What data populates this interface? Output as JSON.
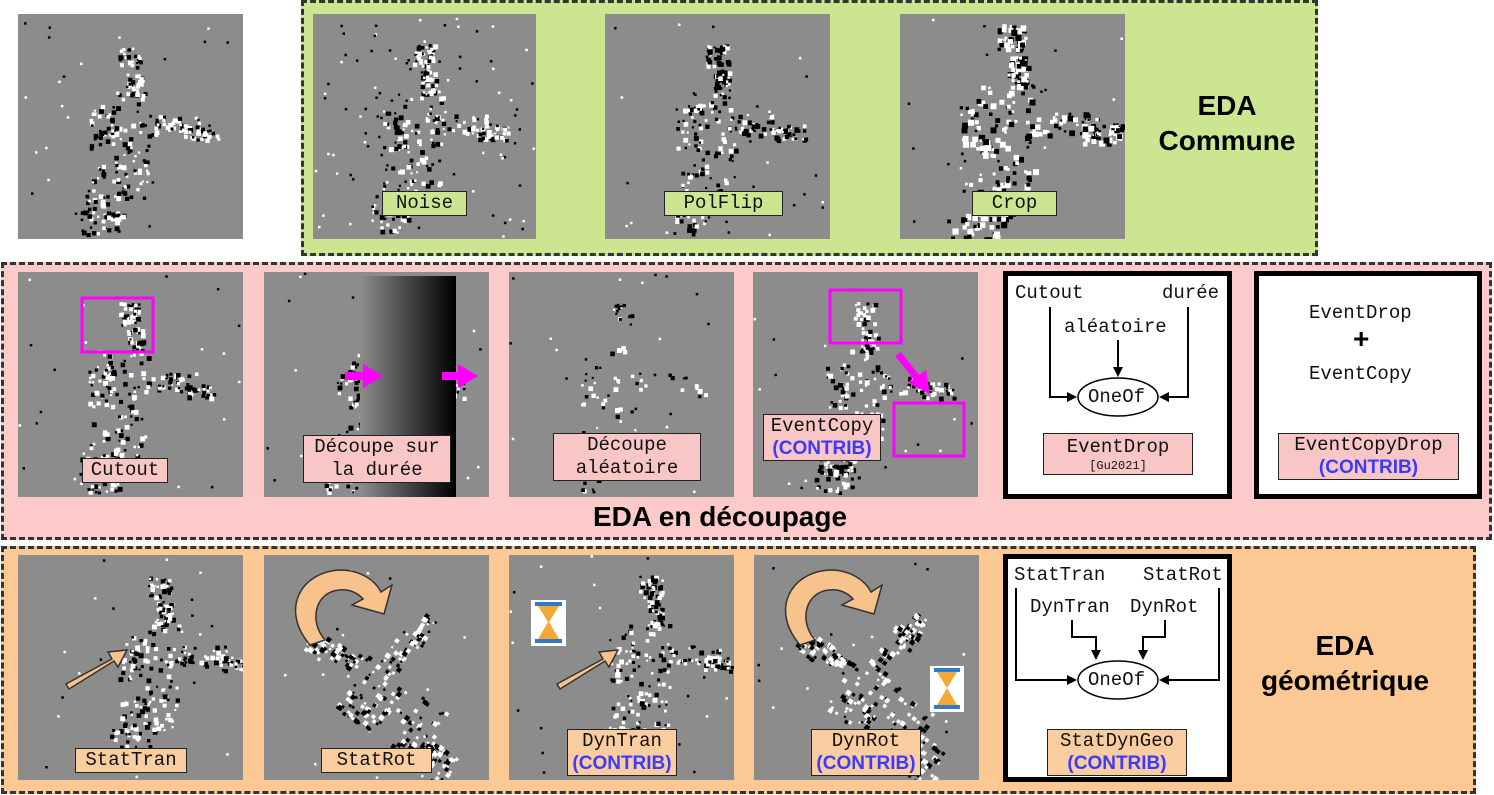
{
  "common": {
    "title_line1": "EDA",
    "title_line2": "Commune",
    "labels": {
      "noise": "Noise",
      "polflip": "PolFlip",
      "crop": "Crop"
    }
  },
  "cutting": {
    "title": "EDA en découpage",
    "labels": {
      "cutout": "Cutout",
      "time_cut_1": "Découpe sur",
      "time_cut_2": "la durée",
      "random_cut_1": "Découpe",
      "random_cut_2": "aléatoire",
      "eventcopy": "EventCopy",
      "contrib": "(CONTRIB)",
      "eventdrop": "EventDrop",
      "eventdrop_ref": "[Gu2021]",
      "eventcopydrop": "EventCopyDrop"
    },
    "eventdrop_box": {
      "in_left": "Cutout",
      "in_right": "durée",
      "in_mid": "aléatoire",
      "node": "OneOf"
    },
    "copydrop_box": {
      "top": "EventDrop",
      "plus": "+",
      "bottom": "EventCopy"
    }
  },
  "geometric": {
    "title_line1": "EDA",
    "title_line2": "géométrique",
    "labels": {
      "stattran": "StatTran",
      "statrot": "StatRot",
      "dyntran": "DynTran",
      "dynrot": "DynRot",
      "contrib": "(CONTRIB)",
      "statdyngeo": "StatDynGeo"
    },
    "geo_box": {
      "in1": "StatTran",
      "in2": "StatRot",
      "in3": "DynTran",
      "in4": "DynRot",
      "node": "OneOf"
    }
  },
  "colors": {
    "common_bg": "#cbe591",
    "cutting_bg": "#fdcaca",
    "geometric_bg": "#fcc994",
    "contrib_text": "#3b3bff",
    "highlight": "#ff00ff",
    "arrow_fill": "#f7c28c"
  }
}
